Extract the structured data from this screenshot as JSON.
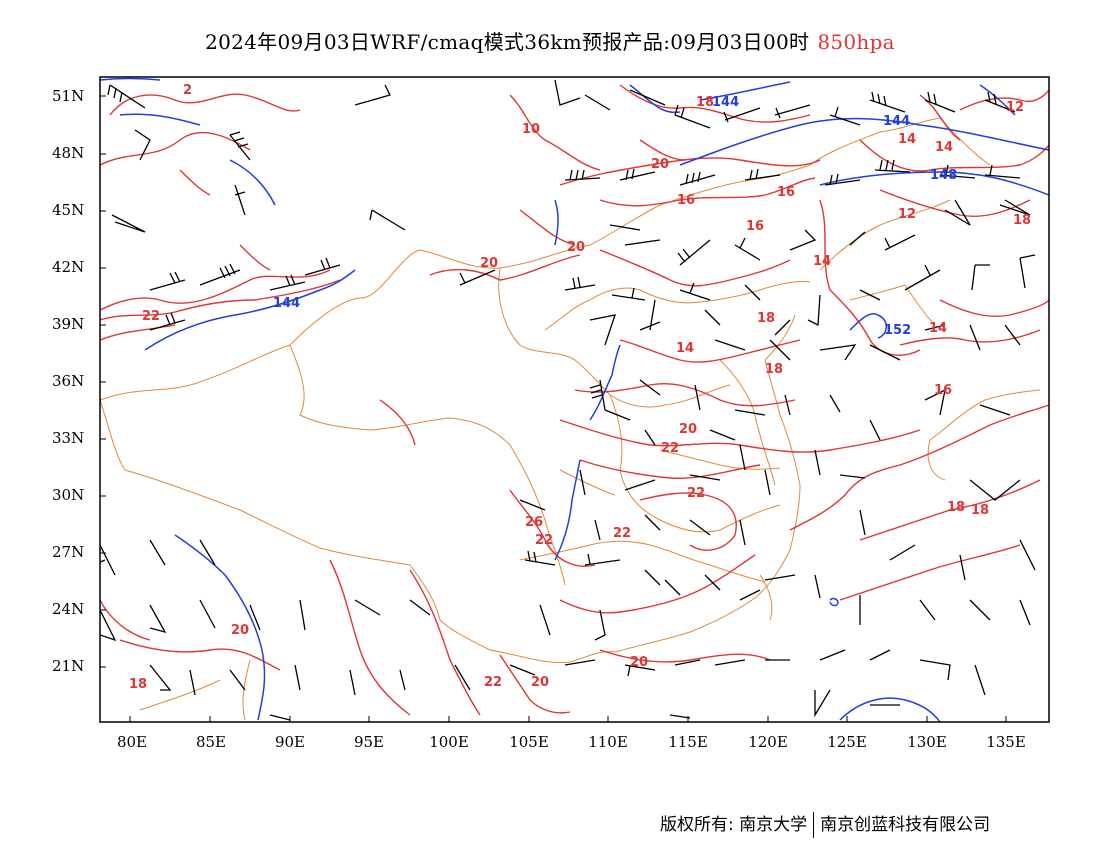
{
  "header": {
    "title": "2024年09月03日WRF/cmaq模式36km预报产品:09月03日00时",
    "level": "850hpa"
  },
  "axes": {
    "lat_labels": [
      "51N",
      "48N",
      "45N",
      "42N",
      "39N",
      "36N",
      "33N",
      "30N",
      "27N",
      "24N",
      "21N"
    ],
    "lon_labels": [
      "80E",
      "85E",
      "90E",
      "95E",
      "100E",
      "105E",
      "110E",
      "115E",
      "120E",
      "125E",
      "130E",
      "135E"
    ]
  },
  "colors": {
    "temperature_contour": "#e03535",
    "height_contour": "#1f3fe0",
    "boundary": "#e08a3a",
    "wind_barb": "#000000"
  },
  "temperature_labels": [
    "2",
    "10",
    "18",
    "20",
    "16",
    "14",
    "12",
    "14",
    "12",
    "16",
    "20",
    "14",
    "18",
    "22",
    "16",
    "14",
    "18",
    "20",
    "18",
    "22",
    "16",
    "22",
    "22",
    "26",
    "22",
    "20",
    "22",
    "20",
    "20",
    "20",
    "18",
    "18",
    "18",
    "14"
  ],
  "height_labels": [
    "144",
    "144",
    "148",
    "144",
    "152"
  ],
  "footer": {
    "copyright": "版权所有: 南京大学",
    "company": "南京创蓝科技有限公司"
  }
}
